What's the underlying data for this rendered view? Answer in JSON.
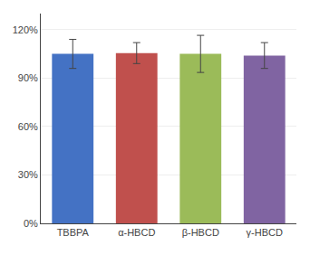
{
  "chart_data": {
    "type": "bar",
    "categories": [
      "TBBPA",
      "α-HBCD",
      "β-HBCD",
      "γ-HBCD"
    ],
    "values": [
      105.0,
      105.5,
      105.0,
      104.0
    ],
    "errors": [
      9.0,
      6.5,
      11.5,
      8.0
    ],
    "colors": [
      "#4472C4",
      "#C0504D",
      "#9BBB59",
      "#8064A2"
    ],
    "ylim": [
      0,
      130
    ],
    "yticks": [
      {
        "value": 0,
        "label": "0%"
      },
      {
        "value": 30,
        "label": "30%"
      },
      {
        "value": 60,
        "label": "60%"
      },
      {
        "value": 90,
        "label": "90%"
      },
      {
        "value": 120,
        "label": "120%"
      }
    ],
    "grid": true
  }
}
